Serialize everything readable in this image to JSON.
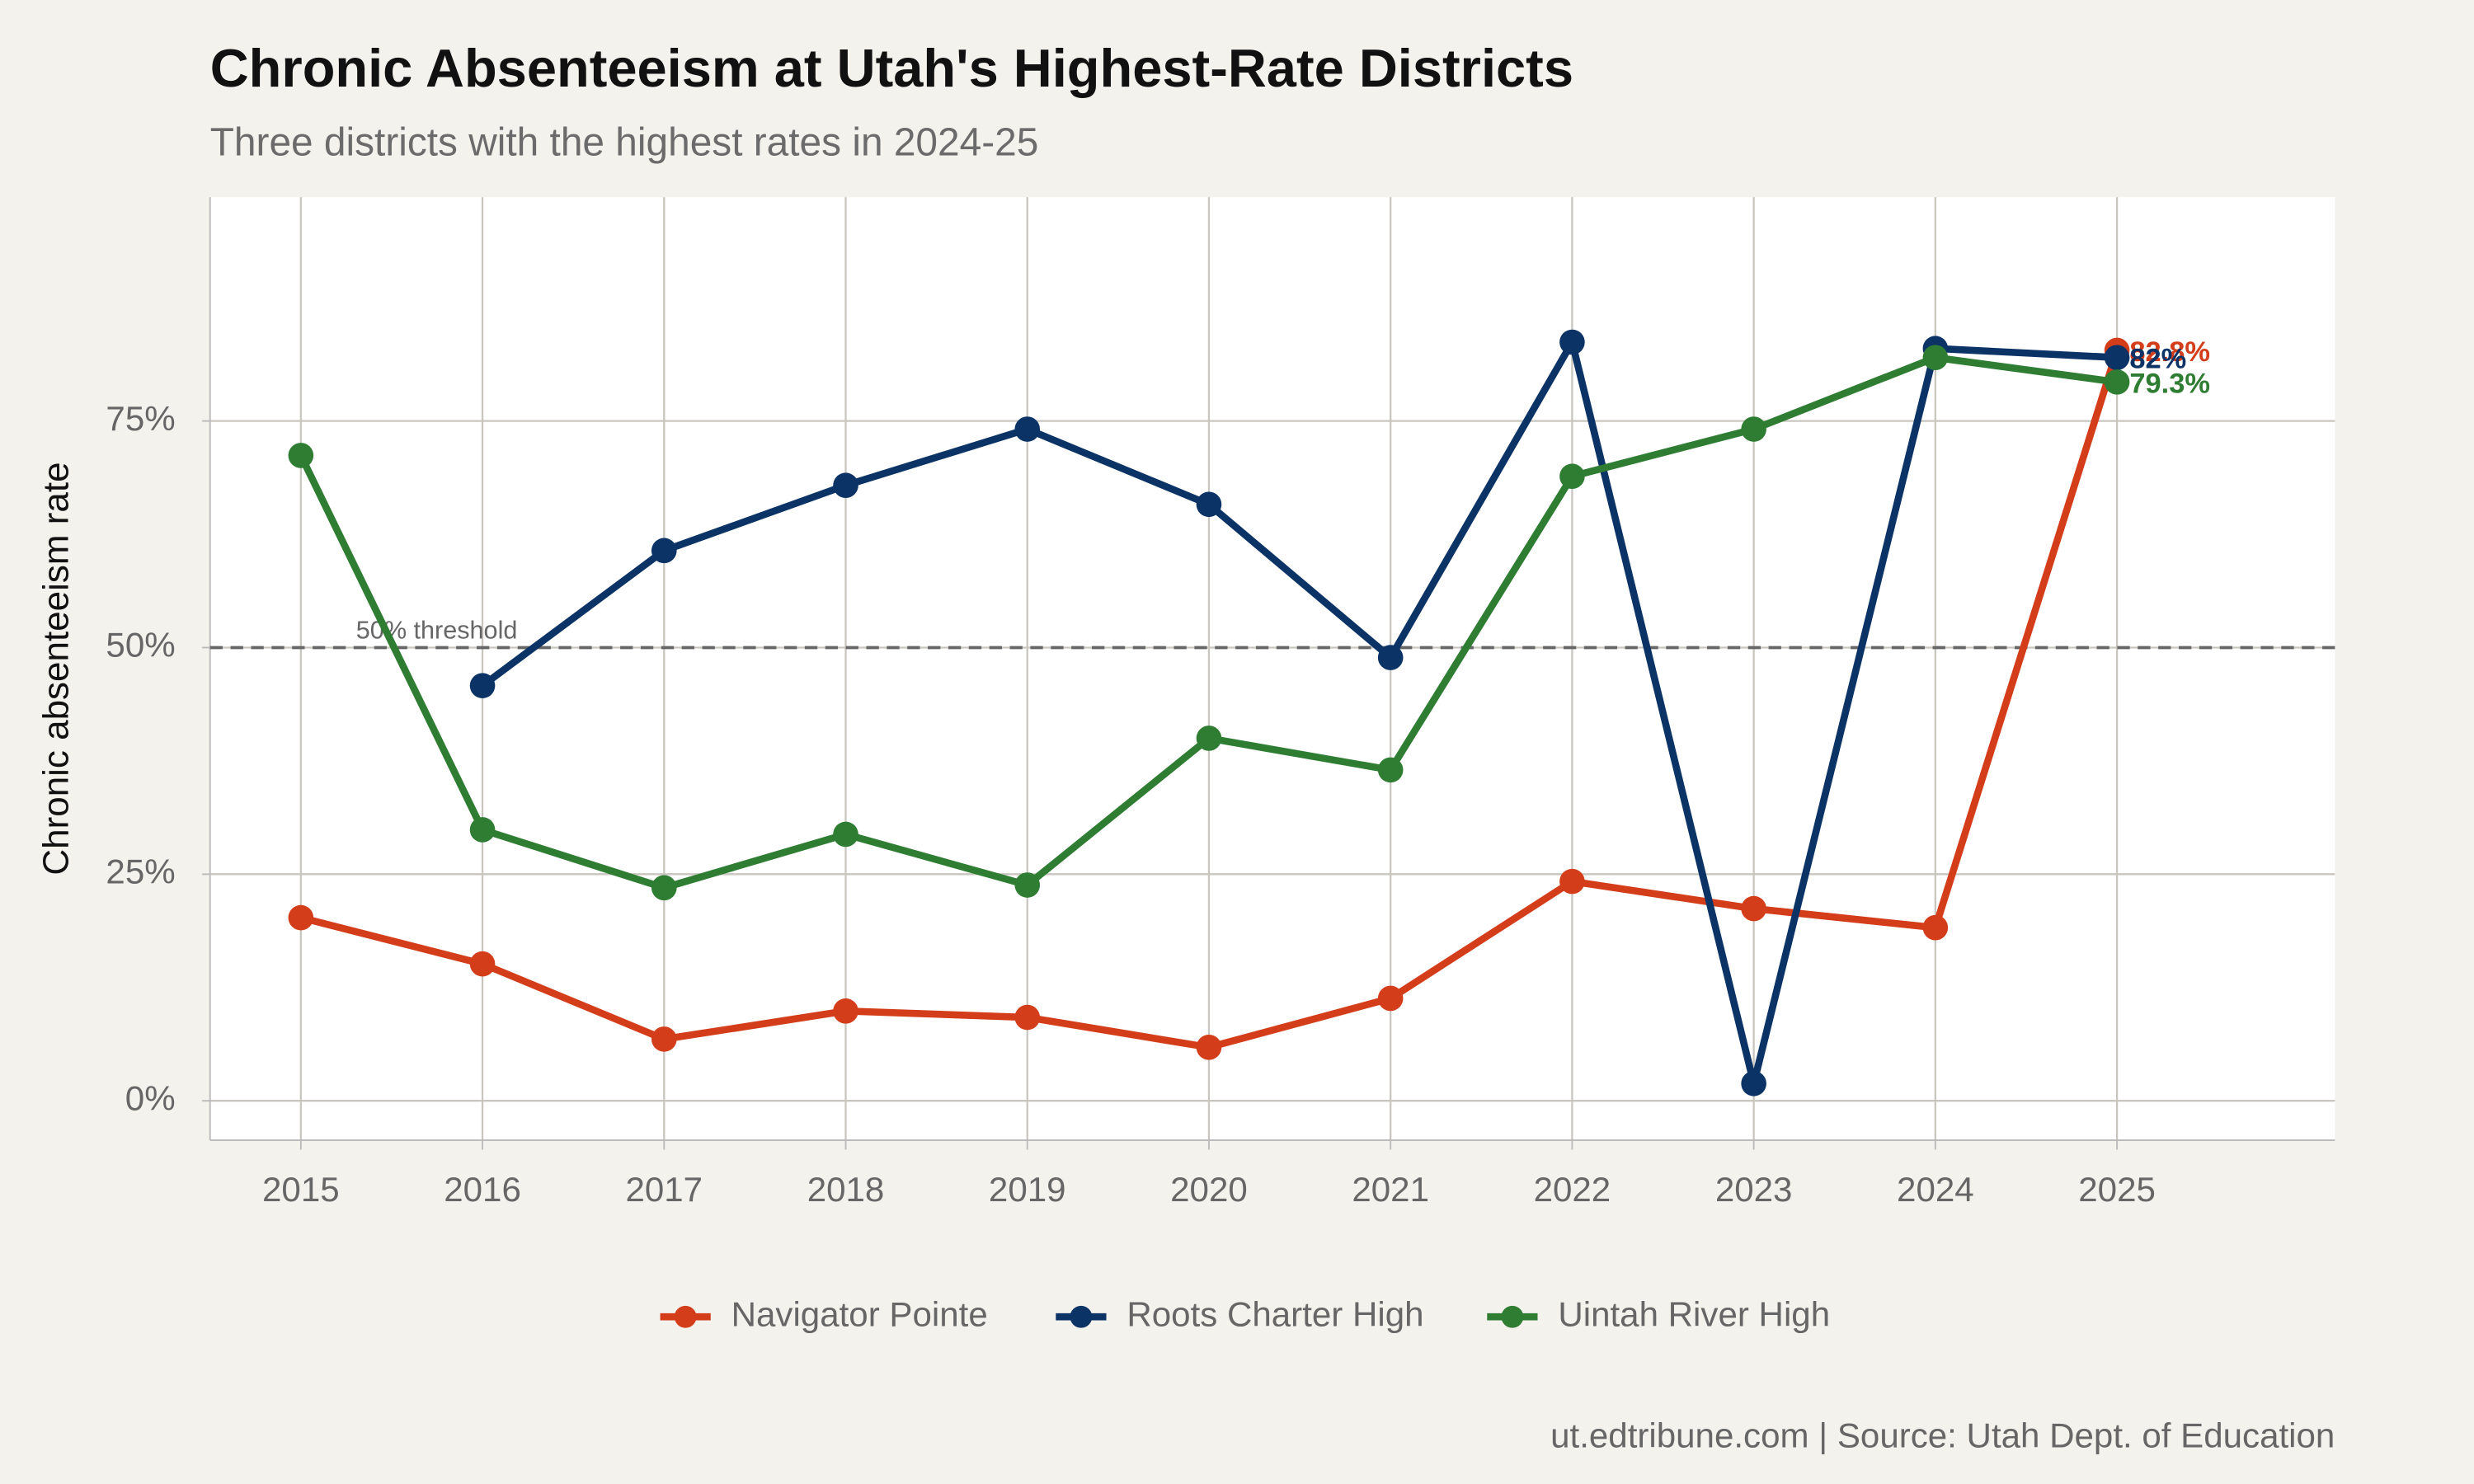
{
  "chart_data": {
    "type": "line",
    "title": "Chronic Absenteeism at Utah's Highest-Rate Districts",
    "subtitle": "Three districts with the highest rates in 2024-25",
    "y_label": "Chronic absenteeism rate",
    "caption": "ut.edtribune.com | Source: Utah Dept. of Education",
    "x": [
      2015,
      2016,
      2017,
      2018,
      2019,
      2020,
      2021,
      2022,
      2023,
      2024,
      2025
    ],
    "xlim": [
      2014.5,
      2026.2
    ],
    "xticks": [
      2015,
      2016,
      2017,
      2018,
      2019,
      2020,
      2021,
      2022,
      2023,
      2024,
      2025
    ],
    "ylim": [
      -4.35,
      99.7
    ],
    "yticks": [
      {
        "value": 0,
        "label": "0%"
      },
      {
        "value": 25,
        "label": "25%"
      },
      {
        "value": 50,
        "label": "50%"
      },
      {
        "value": 75,
        "label": "75%"
      }
    ],
    "grid": true,
    "legend": "bottom",
    "reference_line": {
      "value": 50,
      "label": "50% threshold"
    },
    "series": [
      {
        "name": "Navigator Pointe",
        "color": "#d43d1a",
        "values": [
          20.2,
          15.1,
          6.8,
          9.9,
          9.2,
          5.9,
          11.3,
          24.2,
          21.2,
          19.1,
          82.8
        ],
        "value_labels": [
          null,
          null,
          null,
          null,
          null,
          null,
          null,
          null,
          null,
          null,
          "82.8%"
        ]
      },
      {
        "name": "Roots Charter High",
        "color": "#0b3366",
        "values": [
          null,
          45.8,
          60.7,
          67.9,
          74.1,
          65.8,
          48.9,
          83.7,
          1.9,
          83.0,
          82.0
        ],
        "value_labels": [
          null,
          null,
          null,
          null,
          null,
          null,
          null,
          null,
          null,
          null,
          "82%"
        ]
      },
      {
        "name": "Uintah River High",
        "color": "#2e7d32",
        "values": [
          71.2,
          29.9,
          23.5,
          29.4,
          23.8,
          40.0,
          36.5,
          68.9,
          74.1,
          82.0,
          79.3
        ],
        "value_labels": [
          null,
          null,
          null,
          null,
          null,
          null,
          null,
          null,
          null,
          null,
          "79.3%"
        ]
      }
    ]
  }
}
